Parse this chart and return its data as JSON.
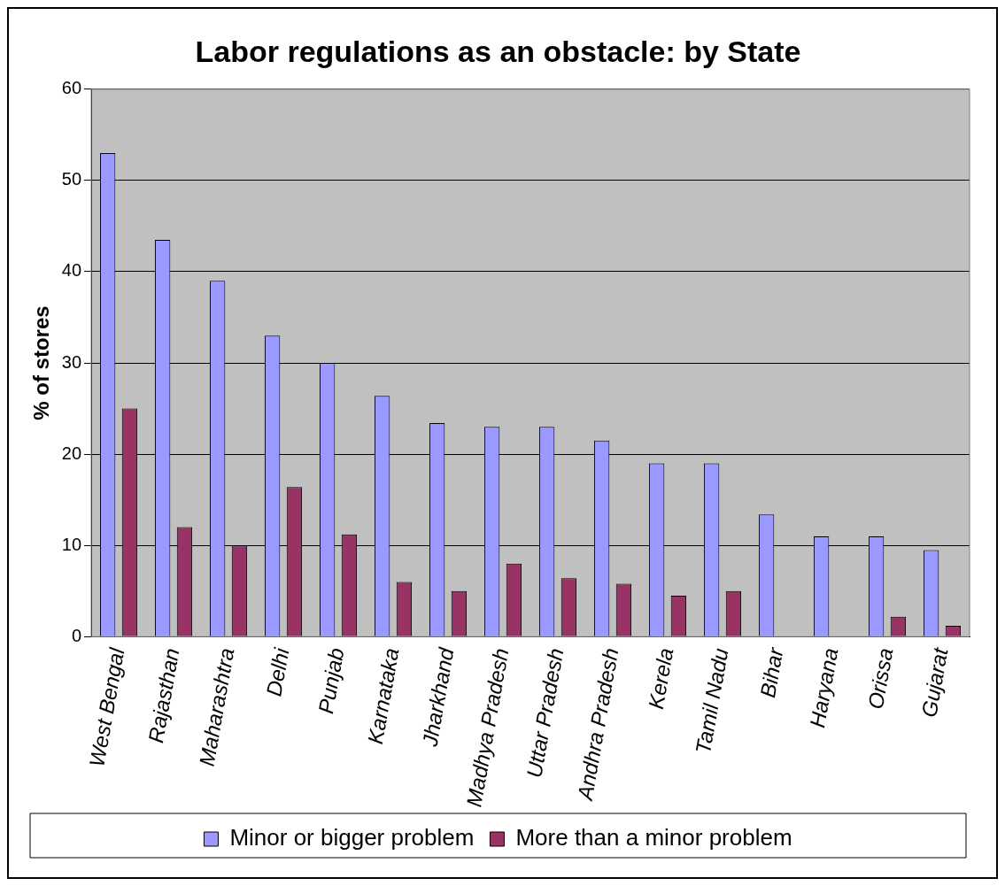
{
  "chart_data": {
    "type": "bar",
    "title": "Labor regulations as an obstacle: by State",
    "ylabel": "% of stores",
    "categories": [
      "West Bengal",
      "Rajasthan",
      "Maharashtra",
      "Delhi",
      "Punjab",
      "Karnataka",
      "Jharkhand",
      "Madhya Pradesh",
      "Uttar Pradesh",
      "Andhra Pradesh",
      "Kerela",
      "Tamil Nadu",
      "Bihar",
      "Haryana",
      "Orissa",
      "Gujarat"
    ],
    "series": [
      {
        "name": "Minor or bigger problem",
        "color": "#9999ff",
        "values": [
          53,
          43.5,
          39,
          33,
          30,
          26.4,
          23.4,
          23,
          23,
          21.5,
          19,
          19,
          13.4,
          11,
          11,
          9.5
        ]
      },
      {
        "name": "More than a minor problem",
        "color": "#993366",
        "values": [
          25,
          12,
          10,
          16.4,
          11.2,
          6,
          5,
          8,
          6.4,
          5.8,
          4.5,
          5,
          0,
          0,
          2.2,
          1.2
        ]
      }
    ],
    "ylim": [
      0,
      60
    ],
    "yticks": [
      0,
      10,
      20,
      30,
      40,
      50,
      60
    ],
    "grid": "y",
    "legend": "bottom"
  }
}
